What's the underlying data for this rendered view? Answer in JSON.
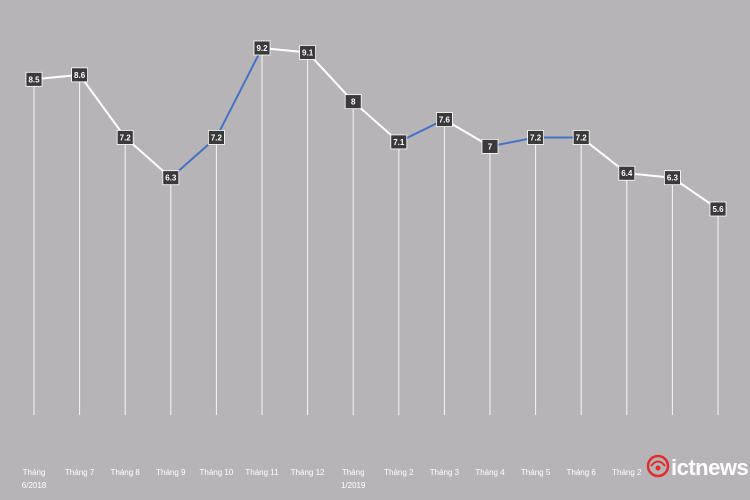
{
  "chart_data": {
    "type": "line",
    "title": "",
    "xlabel": "",
    "ylabel": "",
    "categories": [
      [
        "Tháng",
        "6/2018"
      ],
      [
        "Tháng 7"
      ],
      [
        "Tháng 8"
      ],
      [
        "Tháng 9"
      ],
      [
        "Tháng 10"
      ],
      [
        "Tháng 11"
      ],
      [
        "Tháng 12"
      ],
      [
        "Tháng",
        "1/2019"
      ],
      [
        "Tháng 2"
      ],
      [
        "Tháng 3"
      ],
      [
        "Tháng 4"
      ],
      [
        "Tháng 5"
      ],
      [
        "Tháng 6"
      ],
      [
        "Tháng 2"
      ],
      [],
      []
    ],
    "values": [
      8.5,
      8.6,
      7.2,
      6.3,
      7.2,
      9.2,
      9.1,
      8,
      7.1,
      7.6,
      7,
      7.2,
      7.2,
      6.4,
      6.3,
      5.6
    ],
    "value_labels": [
      "8.5",
      "8.6",
      "7.2",
      "6.3",
      "7.2",
      "9.2",
      "9.1",
      "8",
      "7.1",
      "7.6",
      "7",
      "7.2",
      "7.2",
      "6.4",
      "6.3",
      "5.6"
    ],
    "grid": false,
    "legend": "none",
    "colors": {
      "background": "#b6b4b7",
      "line_light": "#ffffff",
      "line_blue": "#4472c4",
      "label_box": "#3a3a3a",
      "drop_line": "#ffffff",
      "logo_red": "#e12d2d"
    },
    "blue_segments": [
      [
        3,
        5
      ],
      [
        8,
        9
      ],
      [
        10,
        12
      ]
    ]
  },
  "watermark": {
    "text": "ictnews",
    "icon": "ictnews-logo-icon"
  }
}
